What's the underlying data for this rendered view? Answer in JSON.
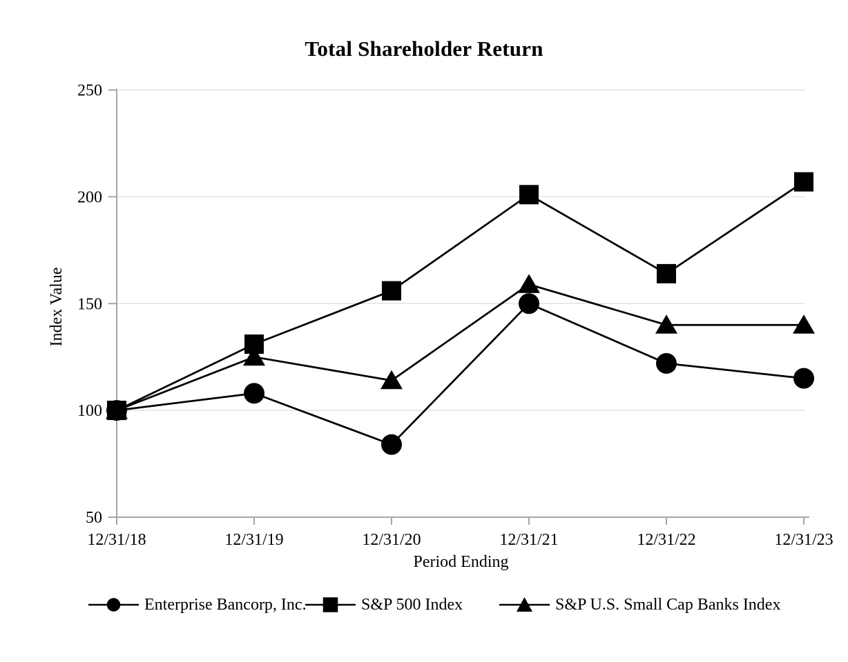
{
  "chart_data": {
    "type": "line",
    "title": "Total Shareholder Return",
    "xlabel": "Period Ending",
    "ylabel": "Index Value",
    "categories": [
      "12/31/18",
      "12/31/19",
      "12/31/20",
      "12/31/21",
      "12/31/22",
      "12/31/23"
    ],
    "ylim": [
      50,
      250
    ],
    "yticks": [
      250,
      200,
      150,
      100,
      50
    ],
    "grid": true,
    "legend_position": "bottom",
    "series": [
      {
        "name": "Enterprise Bancorp, Inc.",
        "marker": "circle",
        "values": [
          100,
          108,
          84,
          150,
          122,
          115
        ]
      },
      {
        "name": "S&P 500 Index",
        "marker": "square",
        "values": [
          100,
          131,
          156,
          201,
          164,
          207
        ]
      },
      {
        "name": "S&P U.S. Small Cap Banks Index",
        "marker": "triangle",
        "values": [
          100,
          125,
          114,
          159,
          140,
          140
        ]
      }
    ],
    "colors": {
      "series": "#000000",
      "axis": "#a6a6a6",
      "gridline": "#e2e2e2",
      "text": "#000000",
      "background": "#ffffff"
    }
  }
}
